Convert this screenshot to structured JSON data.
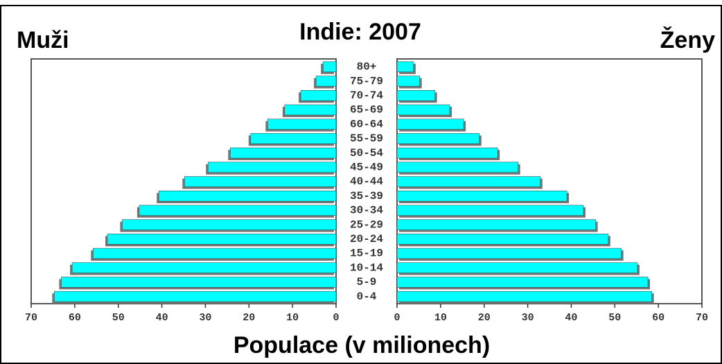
{
  "chart_data": {
    "type": "population-pyramid",
    "title": "Indie: 2007",
    "xlabel": "Populace (v milionech)",
    "categories": [
      "0-4",
      "5-9",
      "10-14",
      "15-19",
      "20-24",
      "25-29",
      "30-34",
      "35-39",
      "40-44",
      "45-49",
      "50-54",
      "55-59",
      "60-64",
      "65-69",
      "70-74",
      "75-79",
      "80+"
    ],
    "series": [
      {
        "name": "Muži",
        "color": "#00ffff",
        "values": [
          64.7,
          63.1,
          60.6,
          55.8,
          52.5,
          49.1,
          45.2,
          40.7,
          34.8,
          29.4,
          24.3,
          19.6,
          15.7,
          11.8,
          8.1,
          4.6,
          3.0
        ]
      },
      {
        "name": "Ženy",
        "color": "#00ffff",
        "values": [
          58.5,
          57.6,
          55.2,
          51.5,
          48.5,
          45.6,
          42.8,
          39.0,
          32.9,
          27.8,
          23.1,
          18.9,
          15.3,
          12.1,
          8.7,
          5.2,
          3.8
        ]
      }
    ],
    "xlim": [
      0,
      70
    ],
    "xticks": [
      0,
      10,
      20,
      30,
      40,
      50,
      60,
      70
    ]
  }
}
